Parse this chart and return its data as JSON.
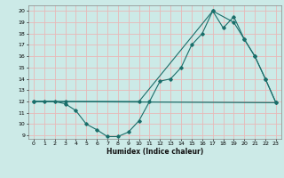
{
  "title": "",
  "xlabel": "Humidex (Indice chaleur)",
  "bg_color": "#cceae7",
  "grid_color": "#e8b8b8",
  "line_color": "#1a6e6a",
  "xlim": [
    -0.5,
    23.5
  ],
  "ylim": [
    8.7,
    20.5
  ],
  "yticks": [
    9,
    10,
    11,
    12,
    13,
    14,
    15,
    16,
    17,
    18,
    19,
    20
  ],
  "xticks": [
    0,
    1,
    2,
    3,
    4,
    5,
    6,
    7,
    8,
    9,
    10,
    11,
    12,
    13,
    14,
    15,
    16,
    17,
    18,
    19,
    20,
    21,
    22,
    23
  ],
  "line1_x": [
    0,
    1,
    2,
    3,
    4,
    5,
    6,
    7,
    8,
    9,
    10,
    11,
    12,
    13,
    14,
    15,
    16,
    17,
    18,
    19,
    20,
    21,
    22,
    23
  ],
  "line1_y": [
    12,
    12,
    12,
    11.8,
    11.2,
    10.0,
    9.5,
    8.9,
    8.9,
    9.3,
    10.3,
    12.0,
    13.8,
    14.0,
    15.0,
    17.0,
    18.0,
    20.0,
    18.5,
    19.5,
    17.5,
    16.0,
    14.0,
    11.9
  ],
  "line2_x": [
    0,
    3,
    10,
    17,
    19,
    20,
    21,
    22,
    23
  ],
  "line2_y": [
    12,
    12,
    12,
    20,
    19,
    17.5,
    16,
    14,
    11.9
  ],
  "line3_x": [
    0,
    23
  ],
  "line3_y": [
    12,
    11.9
  ]
}
